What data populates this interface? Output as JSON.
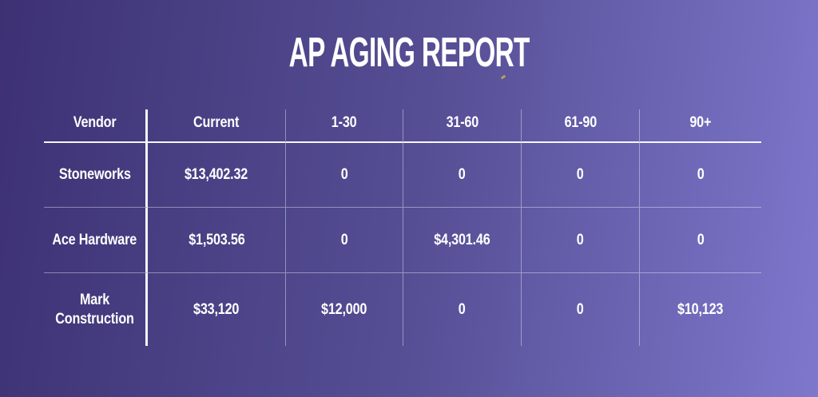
{
  "chart_data": {
    "type": "table",
    "title": "AP AGING REPORT",
    "columns": [
      "Vendor",
      "Current",
      "1-30",
      "31-60",
      "61-90",
      "90+"
    ],
    "rows": [
      {
        "cells": [
          "Stoneworks",
          "$13,402.32",
          "0",
          "0",
          "0",
          "0"
        ]
      },
      {
        "cells": [
          "Ace Hardware",
          "$1,503.56",
          "0",
          "$4,301.46",
          "0",
          "0"
        ]
      },
      {
        "cells": [
          "Mark Construction",
          "$33,120",
          "$12,000",
          "0",
          "0",
          "$10,123"
        ]
      }
    ],
    "layout": {
      "header_row": true,
      "grid": "on",
      "legend": "none",
      "background": "purple-gradient-left-dark-to-right-light"
    }
  },
  "colors": {
    "background_left": "#3d3174",
    "background_right": "#7e77cc",
    "text": "#ffffff",
    "divider_strong": "#ffffff",
    "divider_faint": "#ffffff",
    "speck": "#c0a850"
  }
}
